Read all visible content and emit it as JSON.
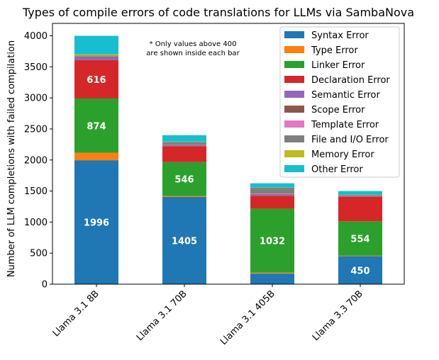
{
  "chart_data": {
    "type": "bar",
    "stacked": true,
    "title": "Types of compile errors of code translations for LLMs via SambaNova",
    "xlabel": "",
    "ylabel": "Number of LLM completions with failed compilation",
    "ylim": [
      0,
      4200
    ],
    "yticks": [
      0,
      500,
      1000,
      1500,
      2000,
      2500,
      3000,
      3500,
      4000
    ],
    "categories": [
      "Llama 3.1 8B",
      "Llama 3.1 70B",
      "Llama 3.1 405B",
      "Llama 3.3 70B"
    ],
    "series": [
      {
        "name": "Syntax Error",
        "color": "#1f77b4",
        "values": [
          1996,
          1405,
          170,
          450
        ]
      },
      {
        "name": "Type Error",
        "color": "#ff7f0e",
        "values": [
          120,
          15,
          15,
          8
        ]
      },
      {
        "name": "Linker Error",
        "color": "#2ca02c",
        "values": [
          874,
          546,
          1032,
          554
        ]
      },
      {
        "name": "Declaration Error",
        "color": "#d62728",
        "values": [
          616,
          255,
          205,
          400
        ]
      },
      {
        "name": "Semantic Error",
        "color": "#9467bd",
        "values": [
          40,
          10,
          20,
          5
        ]
      },
      {
        "name": "Scope Error",
        "color": "#8c564b",
        "values": [
          15,
          5,
          10,
          3
        ]
      },
      {
        "name": "Template Error",
        "color": "#e377c2",
        "values": [
          5,
          5,
          5,
          2
        ]
      },
      {
        "name": "File and I/O Error",
        "color": "#7f7f7f",
        "values": [
          15,
          50,
          95,
          15
        ]
      },
      {
        "name": "Memory Error",
        "color": "#bcbd22",
        "values": [
          20,
          5,
          5,
          3
        ]
      },
      {
        "name": "Other Error",
        "color": "#17becf",
        "values": [
          299,
          104,
          68,
          60
        ]
      }
    ],
    "bar_label_threshold": 400,
    "annotation": [
      "* Only values above 400",
      "are shown inside each bar"
    ],
    "legend_position": "top-right",
    "grid": false
  }
}
